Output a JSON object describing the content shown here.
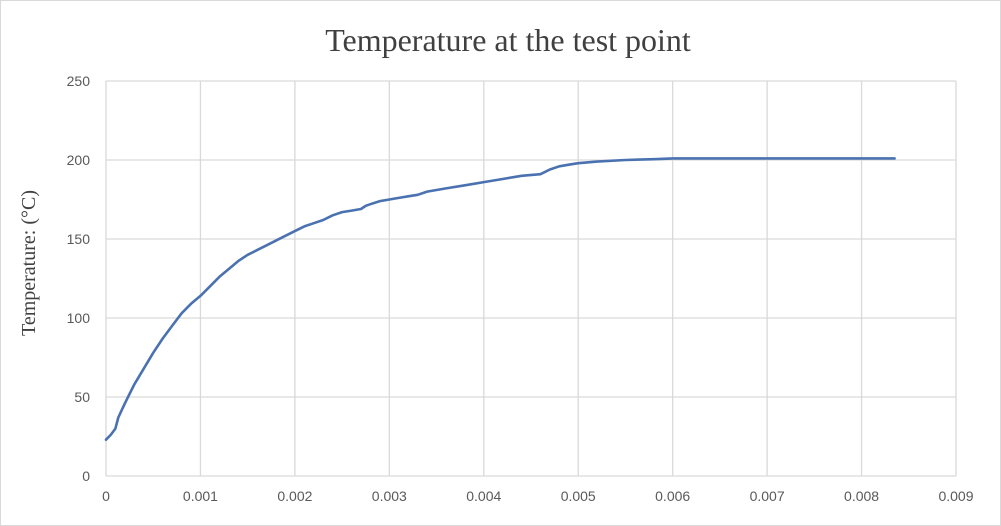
{
  "chart_data": {
    "type": "line",
    "title": "Temperature at the test point",
    "xlabel": "",
    "ylabel": "Temperature: (°C)",
    "xlim": [
      0,
      0.009
    ],
    "ylim": [
      0,
      250
    ],
    "xticks": [
      0,
      0.001,
      0.002,
      0.003,
      0.004,
      0.005,
      0.006,
      0.007,
      0.008,
      0.009
    ],
    "xtick_labels": [
      "0",
      "0.001",
      "0.002",
      "0.003",
      "0.004",
      "0.005",
      "0.006",
      "0.007",
      "0.008",
      "0.009"
    ],
    "yticks": [
      0,
      50,
      100,
      150,
      200,
      250
    ],
    "ytick_labels": [
      "0",
      "50",
      "100",
      "150",
      "200",
      "250"
    ],
    "grid": true,
    "legend": "none",
    "colors": {
      "series": "#4a72b0",
      "grid": "#d9d9d9",
      "text": "#595959"
    },
    "series": [
      {
        "x": [
          0,
          5e-05,
          0.0001,
          0.00013,
          0.0002,
          0.0003,
          0.0004,
          0.0005,
          0.0006,
          0.0007,
          0.0008,
          0.0009,
          0.001,
          0.0011,
          0.0012,
          0.0013,
          0.0014,
          0.0015,
          0.0016,
          0.0017,
          0.0018,
          0.0019,
          0.002,
          0.0021,
          0.0022,
          0.0023,
          0.0024,
          0.0025,
          0.0026,
          0.0027,
          0.00275,
          0.0028,
          0.0029,
          0.003,
          0.0031,
          0.0032,
          0.0033,
          0.0034,
          0.0036,
          0.0038,
          0.004,
          0.0042,
          0.0044,
          0.0046,
          0.0047,
          0.0048,
          0.0049,
          0.005,
          0.0052,
          0.0055,
          0.0058,
          0.006,
          0.0065,
          0.0067,
          0.007,
          0.0075,
          0.0077,
          0.008,
          0.00835
        ],
        "y": [
          23,
          26,
          30,
          37,
          46,
          58,
          68,
          78,
          87,
          95,
          103,
          109,
          114,
          120,
          126,
          131,
          136,
          140,
          143,
          146,
          149,
          152,
          155,
          158,
          160,
          162,
          165,
          167,
          168,
          169,
          171,
          172,
          174,
          175,
          176,
          177,
          178,
          180,
          182,
          184,
          186,
          188,
          190,
          191,
          194,
          196,
          197,
          198,
          199,
          200,
          200.5,
          201,
          201,
          201,
          201,
          201,
          201,
          201,
          201
        ]
      }
    ]
  }
}
